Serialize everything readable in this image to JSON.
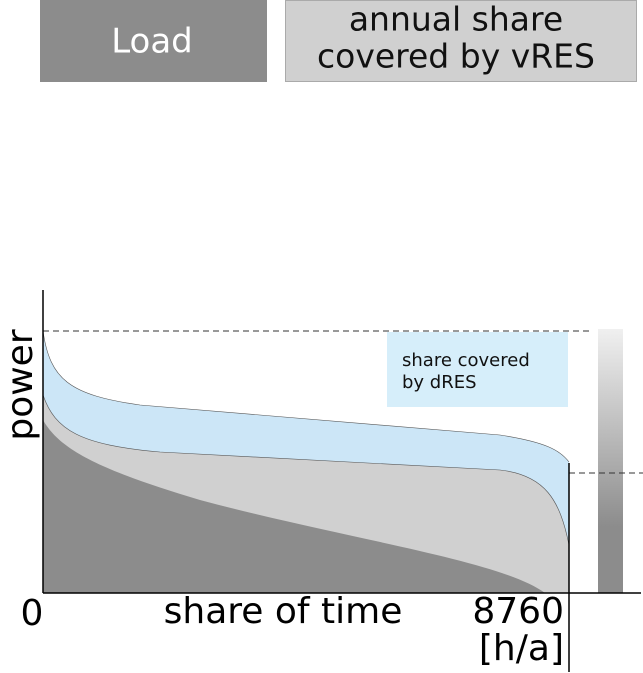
{
  "legend": {
    "load": "Load",
    "vres": [
      "annual share",
      "covered by vRES"
    ]
  },
  "axes": {
    "y_label": "power",
    "x_label": "share of time",
    "x_start": "0",
    "x_end": "8760",
    "x_unit": "[h/a]"
  },
  "annotation": [
    "share covered",
    "by dRES"
  ]
}
